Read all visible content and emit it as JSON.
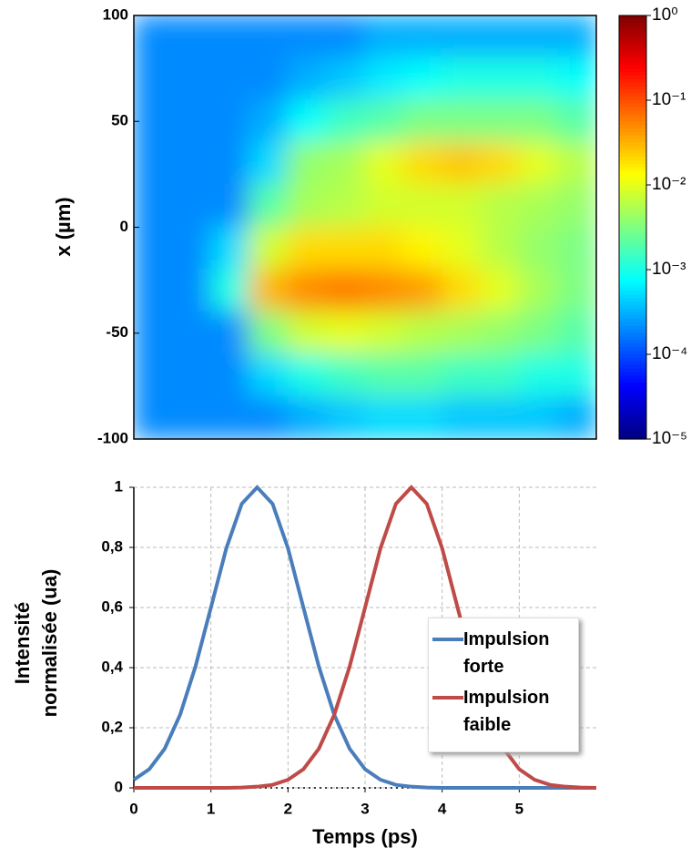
{
  "chart_data": [
    {
      "type": "heatmap",
      "ylabel": "x (µm)",
      "xlim": [
        0,
        6
      ],
      "ylim": [
        -100,
        100
      ],
      "yticks": [
        -100,
        -50,
        0,
        50,
        100
      ],
      "x": [
        0.25,
        0.75,
        1.25,
        1.75,
        2.25,
        2.75,
        3.25,
        3.75,
        4.25,
        4.75,
        5.25,
        5.75
      ],
      "y": [
        90,
        70,
        50,
        30,
        10,
        -10,
        -30,
        -50,
        -70,
        -90
      ],
      "z": [
        [
          0.0002,
          0.0002,
          0.0002,
          0.0002,
          0.0002,
          0.0002,
          0.0003,
          0.0003,
          0.0003,
          0.0003,
          0.0003,
          0.0003
        ],
        [
          0.0002,
          0.0002,
          0.0002,
          0.0002,
          0.0003,
          0.0004,
          0.0006,
          0.0008,
          0.001,
          0.001,
          0.001,
          0.0008
        ],
        [
          0.0002,
          0.0002,
          0.0002,
          0.0003,
          0.0008,
          0.0015,
          0.002,
          0.003,
          0.003,
          0.003,
          0.003,
          0.002
        ],
        [
          0.0002,
          0.0002,
          0.0002,
          0.0005,
          0.004,
          0.005,
          0.01,
          0.02,
          0.025,
          0.02,
          0.01,
          0.006
        ],
        [
          0.0002,
          0.0002,
          0.0002,
          0.002,
          0.005,
          0.006,
          0.008,
          0.008,
          0.008,
          0.006,
          0.005,
          0.004
        ],
        [
          0.0002,
          0.0002,
          0.0005,
          0.008,
          0.02,
          0.02,
          0.02,
          0.015,
          0.01,
          0.006,
          0.004,
          0.003
        ],
        [
          0.0002,
          0.0002,
          0.001,
          0.03,
          0.05,
          0.06,
          0.05,
          0.04,
          0.02,
          0.01,
          0.005,
          0.003
        ],
        [
          0.0002,
          0.0002,
          0.0002,
          0.003,
          0.008,
          0.01,
          0.008,
          0.006,
          0.005,
          0.004,
          0.003,
          0.002
        ],
        [
          0.0002,
          0.0002,
          0.0002,
          0.0005,
          0.001,
          0.0015,
          0.002,
          0.002,
          0.0015,
          0.0015,
          0.001,
          0.001
        ],
        [
          0.0002,
          0.0002,
          0.0002,
          0.0002,
          0.0003,
          0.0004,
          0.0005,
          0.0005,
          0.0004,
          0.0004,
          0.0004,
          0.0003
        ]
      ],
      "colormap": "jet",
      "color_log_scale": true,
      "clim": [
        1e-05,
        1
      ],
      "cticks": [
        {
          "value": 1,
          "label": "10⁰"
        },
        {
          "value": 0.1,
          "label": "10⁻¹"
        },
        {
          "value": 0.01,
          "label": "10⁻²"
        },
        {
          "value": 0.001,
          "label": "10⁻³"
        },
        {
          "value": 0.0001,
          "label": "10⁻⁴"
        },
        {
          "value": 1e-05,
          "label": "10⁻⁵"
        }
      ]
    },
    {
      "type": "line",
      "xlabel": "Temps (ps)",
      "ylabel": "Intensité normalisée (ua)",
      "xlim": [
        0,
        6
      ],
      "ylim": [
        0,
        1
      ],
      "xticks": [
        0,
        1,
        2,
        3,
        4,
        5
      ],
      "yticks": [
        0,
        {
          "value": 0.2,
          "label": "0,2"
        },
        {
          "value": 0.4,
          "label": "0,4"
        },
        {
          "value": 0.6,
          "label": "0,6"
        },
        {
          "value": 0.8,
          "label": "0,8"
        },
        1
      ],
      "grid": true,
      "legend": "right",
      "x": [
        0,
        0.2,
        0.4,
        0.6,
        0.8,
        1,
        1.2,
        1.4,
        1.6,
        1.8,
        2,
        2.2,
        2.4,
        2.6,
        2.8,
        3,
        3.2,
        3.4,
        3.6,
        3.8,
        4,
        4.2,
        4.4,
        4.6,
        4.8,
        5,
        5.2,
        5.4,
        5.6,
        5.8,
        6
      ],
      "series": [
        {
          "name": "Impulsion forte",
          "color": "#4a7ebb",
          "values": [
            0.027,
            0.062,
            0.13,
            0.243,
            0.404,
            0.6,
            0.797,
            0.945,
            1,
            0.945,
            0.797,
            0.6,
            0.404,
            0.243,
            0.13,
            0.062,
            0.027,
            0.01,
            0.004,
            0.001,
            0,
            0,
            0,
            0,
            0,
            0,
            0,
            0,
            0,
            0,
            0
          ]
        },
        {
          "name": "Impulsion faible",
          "color": "#be4b48",
          "values": [
            0,
            0,
            0,
            0,
            0,
            0,
            0,
            0.001,
            0.004,
            0.01,
            0.027,
            0.062,
            0.13,
            0.243,
            0.404,
            0.6,
            0.797,
            0.945,
            1,
            0.945,
            0.797,
            0.6,
            0.404,
            0.243,
            0.13,
            0.062,
            0.027,
            0.01,
            0.004,
            0.001,
            0
          ]
        }
      ]
    }
  ]
}
